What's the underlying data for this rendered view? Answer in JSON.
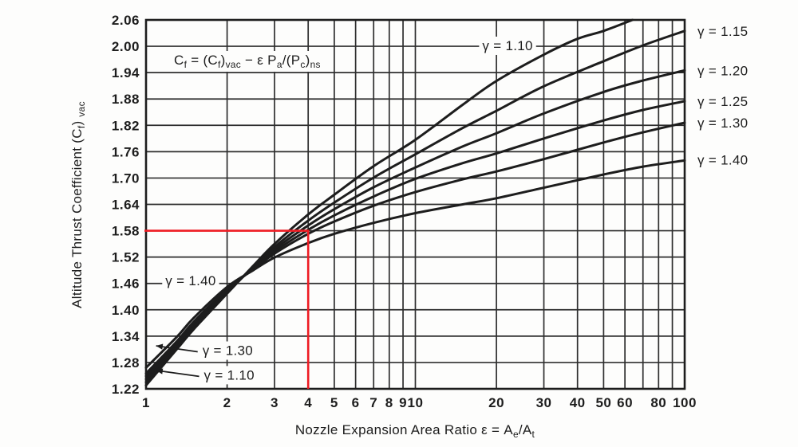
{
  "figure": {
    "background": "#fdfdfc",
    "ink_color": "#1d1d1d",
    "grid_color": "#2e2e2e",
    "annotation_color": "#ee1c23"
  },
  "chart_data": {
    "type": "line",
    "x_scale": "log",
    "grid": "on",
    "legend_position": "inline-and-right-margin",
    "xlim": [
      1,
      100
    ],
    "ylim": [
      1.22,
      2.06
    ],
    "xlabel": "Nozzle Expansion Area Ratio ε = Ae/At",
    "xlabel_segments": [
      {
        "t": "Nozzle Expansion Area Ratio ε = A"
      },
      {
        "t": "e",
        "sub": true
      },
      {
        "t": "/A"
      },
      {
        "t": "t",
        "sub": true
      }
    ],
    "ylabel": "Altitude Thrust Coefficient (Cf) vac",
    "ylabel_segments": [
      {
        "t": "Altitude Thrust Coefficient (C"
      },
      {
        "t": "f",
        "sub": true
      },
      {
        "t": ") "
      },
      {
        "t": "vac",
        "sub": true
      }
    ],
    "formula": "Cf = (Cf)vac − ε Pa/(Pc)ns",
    "formula_segments": [
      {
        "t": "C"
      },
      {
        "t": "f",
        "sub": true
      },
      {
        "t": " = (C"
      },
      {
        "t": "f",
        "sub": true
      },
      {
        "t": ")"
      },
      {
        "t": "vac",
        "sub": true
      },
      {
        "t": " − ε P"
      },
      {
        "t": "a",
        "sub": true
      },
      {
        "t": "/(P"
      },
      {
        "t": "c",
        "sub": true
      },
      {
        "t": ")"
      },
      {
        "t": "ns",
        "sub": true
      }
    ],
    "yticks": [
      "2.06",
      "2.00",
      "1.94",
      "1.88",
      "1.82",
      "1.76",
      "1.70",
      "1.64",
      "1.58",
      "1.52",
      "1.46",
      "1.40",
      "1.34",
      "1.28",
      "1.22"
    ],
    "xticks": [
      {
        "v": 1,
        "label": "1"
      },
      {
        "v": 2,
        "label": "2"
      },
      {
        "v": 3,
        "label": "3"
      },
      {
        "v": 4,
        "label": "4"
      },
      {
        "v": 5,
        "label": "5"
      },
      {
        "v": 6,
        "label": "6"
      },
      {
        "v": 7,
        "label": "7"
      },
      {
        "v": 8,
        "label": "8"
      },
      {
        "v": 9,
        "label": "9"
      },
      {
        "v": 10,
        "label": "10"
      },
      {
        "v": 20,
        "label": "20"
      },
      {
        "v": 30,
        "label": "30"
      },
      {
        "v": 40,
        "label": "40"
      },
      {
        "v": 50,
        "label": "50"
      },
      {
        "v": 60,
        "label": "60"
      },
      {
        "v": 80,
        "label": "80"
      },
      {
        "v": 100,
        "label": "100"
      }
    ],
    "xgrid": [
      1,
      2,
      3,
      4,
      5,
      6,
      7,
      8,
      9,
      10,
      20,
      30,
      40,
      50,
      60,
      70,
      80,
      90,
      100
    ],
    "series": [
      {
        "name": "gamma-1.10",
        "label": "γ = 1.10",
        "points": [
          [
            1,
            1.228
          ],
          [
            1.3,
            1.31
          ],
          [
            1.5,
            1.355
          ],
          [
            2,
            1.437
          ],
          [
            2.5,
            1.5
          ],
          [
            3,
            1.55
          ],
          [
            4,
            1.617
          ],
          [
            5,
            1.662
          ],
          [
            7,
            1.727
          ],
          [
            10,
            1.787
          ],
          [
            15,
            1.867
          ],
          [
            20,
            1.921
          ],
          [
            30,
            1.981
          ],
          [
            40,
            2.017
          ],
          [
            50,
            2.035
          ],
          [
            64,
            2.06
          ]
        ]
      },
      {
        "name": "gamma-1.15",
        "label": "γ = 1.15",
        "points": [
          [
            1,
            1.235
          ],
          [
            1.3,
            1.315
          ],
          [
            1.5,
            1.36
          ],
          [
            2,
            1.44
          ],
          [
            2.5,
            1.497
          ],
          [
            3,
            1.543
          ],
          [
            4,
            1.603
          ],
          [
            5,
            1.644
          ],
          [
            7,
            1.701
          ],
          [
            10,
            1.754
          ],
          [
            15,
            1.814
          ],
          [
            20,
            1.853
          ],
          [
            30,
            1.909
          ],
          [
            50,
            1.966
          ],
          [
            70,
            2.002
          ],
          [
            100,
            2.035
          ]
        ]
      },
      {
        "name": "gamma-1.20",
        "label": "γ = 1.20",
        "points": [
          [
            1,
            1.242
          ],
          [
            1.3,
            1.318
          ],
          [
            1.5,
            1.364
          ],
          [
            2,
            1.442
          ],
          [
            2.5,
            1.496
          ],
          [
            3,
            1.538
          ],
          [
            4,
            1.592
          ],
          [
            5,
            1.629
          ],
          [
            7,
            1.679
          ],
          [
            10,
            1.724
          ],
          [
            15,
            1.772
          ],
          [
            20,
            1.802
          ],
          [
            30,
            1.847
          ],
          [
            50,
            1.896
          ],
          [
            70,
            1.922
          ],
          [
            100,
            1.945
          ]
        ]
      },
      {
        "name": "gamma-1.25",
        "label": "γ = 1.25",
        "points": [
          [
            1,
            1.249
          ],
          [
            1.3,
            1.323
          ],
          [
            1.5,
            1.368
          ],
          [
            2,
            1.444
          ],
          [
            2.5,
            1.494
          ],
          [
            3,
            1.533
          ],
          [
            4,
            1.582
          ],
          [
            5,
            1.615
          ],
          [
            7,
            1.658
          ],
          [
            10,
            1.698
          ],
          [
            15,
            1.734
          ],
          [
            20,
            1.756
          ],
          [
            30,
            1.79
          ],
          [
            50,
            1.831
          ],
          [
            70,
            1.855
          ],
          [
            100,
            1.875
          ]
        ]
      },
      {
        "name": "gamma-1.30",
        "label": "γ = 1.30",
        "points": [
          [
            1,
            1.255
          ],
          [
            1.3,
            1.328
          ],
          [
            1.5,
            1.372
          ],
          [
            2,
            1.447
          ],
          [
            2.5,
            1.492
          ],
          [
            3,
            1.528
          ],
          [
            4,
            1.573
          ],
          [
            5,
            1.601
          ],
          [
            7,
            1.637
          ],
          [
            10,
            1.668
          ],
          [
            15,
            1.697
          ],
          [
            20,
            1.715
          ],
          [
            30,
            1.743
          ],
          [
            50,
            1.781
          ],
          [
            70,
            1.804
          ],
          [
            100,
            1.826
          ]
        ]
      },
      {
        "name": "gamma-1.40",
        "label": "γ = 1.40",
        "points": [
          [
            1,
            1.268
          ],
          [
            1.3,
            1.338
          ],
          [
            1.5,
            1.381
          ],
          [
            2,
            1.452
          ],
          [
            2.5,
            1.49
          ],
          [
            3,
            1.519
          ],
          [
            4,
            1.552
          ],
          [
            5,
            1.573
          ],
          [
            7,
            1.598
          ],
          [
            10,
            1.62
          ],
          [
            15,
            1.64
          ],
          [
            20,
            1.654
          ],
          [
            30,
            1.678
          ],
          [
            50,
            1.708
          ],
          [
            70,
            1.726
          ],
          [
            100,
            1.74
          ]
        ]
      }
    ],
    "right_labels": [
      {
        "label": "γ = 1.15",
        "y": 2.035
      },
      {
        "label": "γ = 1.20",
        "y": 1.945
      },
      {
        "label": "γ = 1.25",
        "y": 1.875
      },
      {
        "label": "γ = 1.30",
        "y": 1.826
      },
      {
        "label": "γ = 1.40",
        "y": 1.742
      }
    ],
    "inline_labels": [
      {
        "label": "γ = 1.10",
        "x": 22,
        "y": 2.002,
        "anchor": "middle",
        "bg": true
      },
      {
        "label": "γ = 1.40",
        "x": 1.18,
        "y": 1.467,
        "anchor": "start",
        "bg": true
      },
      {
        "label": "γ = 1.30",
        "x": 1.62,
        "y": 1.308,
        "anchor": "start",
        "bg": true,
        "arrow_to": {
          "x": 1.09,
          "y": 1.318
        }
      },
      {
        "label": "γ = 1.10",
        "x": 1.64,
        "y": 1.252,
        "anchor": "start",
        "bg": true,
        "arrow_to": {
          "x": 1.09,
          "y": 1.262
        }
      }
    ],
    "annotation": {
      "x": 4,
      "y": 1.58,
      "color": "#ee1c23"
    }
  }
}
